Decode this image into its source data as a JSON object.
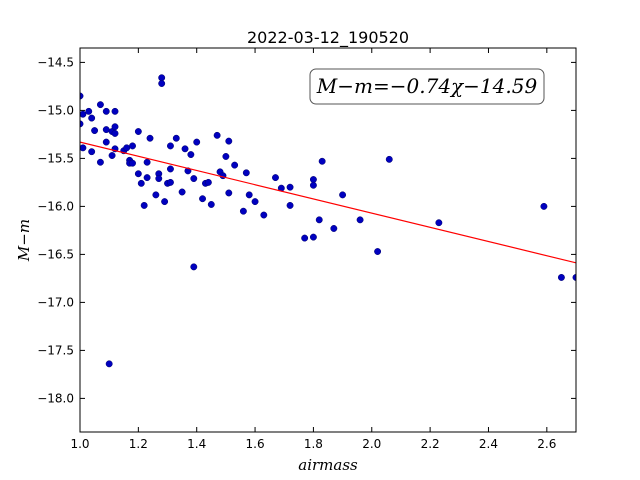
{
  "chart_data": {
    "type": "scatter",
    "title": "2022-03-12_190520",
    "xlabel": "airmass",
    "ylabel": "M−m",
    "xlim": [
      1.0,
      2.7
    ],
    "ylim": [
      -18.35,
      -14.35
    ],
    "ylim_note": "y axis increases upward from -18.35 to -14.35",
    "xticks": [
      1.0,
      1.2,
      1.4,
      1.6,
      1.8,
      2.0,
      2.2,
      2.4,
      2.6
    ],
    "xtick_labels": [
      "1.0",
      "1.2",
      "1.4",
      "1.6",
      "1.8",
      "2.0",
      "2.2",
      "2.4",
      "2.6"
    ],
    "yticks": [
      -14.5,
      -15.0,
      -15.5,
      -16.0,
      -16.5,
      -17.0,
      -17.5,
      -18.0
    ],
    "ytick_labels": [
      "−14.5",
      "−15.0",
      "−15.5",
      "−16.0",
      "−16.5",
      "−17.0",
      "−17.5",
      "−18.0"
    ],
    "annotation": "M−m=−0.74χ−14.59",
    "annotation_position": "top-right",
    "grid": false,
    "fit": {
      "slope": -0.74,
      "intercept": -14.59,
      "color": "#ff0000"
    },
    "series": [
      {
        "color": "#0000bf",
        "points": [
          [
            1.0,
            -14.85
          ],
          [
            1.0,
            -15.14
          ],
          [
            1.01,
            -15.04
          ],
          [
            1.01,
            -15.39
          ],
          [
            1.03,
            -15.01
          ],
          [
            1.04,
            -15.08
          ],
          [
            1.04,
            -15.43
          ],
          [
            1.05,
            -15.21
          ],
          [
            1.07,
            -14.94
          ],
          [
            1.07,
            -15.54
          ],
          [
            1.09,
            -15.01
          ],
          [
            1.09,
            -15.2
          ],
          [
            1.09,
            -15.33
          ],
          [
            1.1,
            -17.64
          ],
          [
            1.11,
            -15.22
          ],
          [
            1.11,
            -15.47
          ],
          [
            1.12,
            -15.01
          ],
          [
            1.12,
            -15.17
          ],
          [
            1.12,
            -15.24
          ],
          [
            1.12,
            -15.4
          ],
          [
            1.15,
            -15.42
          ],
          [
            1.16,
            -15.39
          ],
          [
            1.17,
            -15.52
          ],
          [
            1.17,
            -15.55
          ],
          [
            1.18,
            -15.37
          ],
          [
            1.18,
            -15.55
          ],
          [
            1.2,
            -15.22
          ],
          [
            1.2,
            -15.66
          ],
          [
            1.21,
            -15.76
          ],
          [
            1.22,
            -15.99
          ],
          [
            1.23,
            -15.54
          ],
          [
            1.23,
            -15.7
          ],
          [
            1.24,
            -15.29
          ],
          [
            1.26,
            -15.88
          ],
          [
            1.27,
            -15.66
          ],
          [
            1.27,
            -15.71
          ],
          [
            1.28,
            -14.66
          ],
          [
            1.28,
            -14.72
          ],
          [
            1.29,
            -15.95
          ],
          [
            1.3,
            -15.76
          ],
          [
            1.31,
            -15.37
          ],
          [
            1.31,
            -15.61
          ],
          [
            1.31,
            -15.75
          ],
          [
            1.33,
            -15.29
          ],
          [
            1.35,
            -15.85
          ],
          [
            1.36,
            -15.4
          ],
          [
            1.37,
            -15.63
          ],
          [
            1.38,
            -15.46
          ],
          [
            1.39,
            -15.71
          ],
          [
            1.39,
            -16.63
          ],
          [
            1.4,
            -15.33
          ],
          [
            1.42,
            -15.92
          ],
          [
            1.43,
            -15.76
          ],
          [
            1.44,
            -15.75
          ],
          [
            1.45,
            -15.98
          ],
          [
            1.47,
            -15.26
          ],
          [
            1.48,
            -15.64
          ],
          [
            1.49,
            -15.68
          ],
          [
            1.5,
            -15.48
          ],
          [
            1.51,
            -15.86
          ],
          [
            1.51,
            -15.32
          ],
          [
            1.53,
            -15.57
          ],
          [
            1.56,
            -16.05
          ],
          [
            1.57,
            -15.65
          ],
          [
            1.58,
            -15.88
          ],
          [
            1.6,
            -15.95
          ],
          [
            1.63,
            -16.09
          ],
          [
            1.67,
            -15.7
          ],
          [
            1.69,
            -15.81
          ],
          [
            1.72,
            -15.8
          ],
          [
            1.72,
            -15.99
          ],
          [
            1.77,
            -16.33
          ],
          [
            1.8,
            -16.32
          ],
          [
            1.8,
            -15.72
          ],
          [
            1.8,
            -15.78
          ],
          [
            1.82,
            -16.14
          ],
          [
            1.83,
            -15.53
          ],
          [
            1.87,
            -16.23
          ],
          [
            1.9,
            -15.88
          ],
          [
            1.96,
            -16.14
          ],
          [
            2.02,
            -16.47
          ],
          [
            2.06,
            -15.51
          ],
          [
            2.23,
            -16.17
          ],
          [
            2.59,
            -16.0
          ],
          [
            2.65,
            -16.74
          ],
          [
            2.7,
            -16.74
          ]
        ]
      }
    ]
  }
}
